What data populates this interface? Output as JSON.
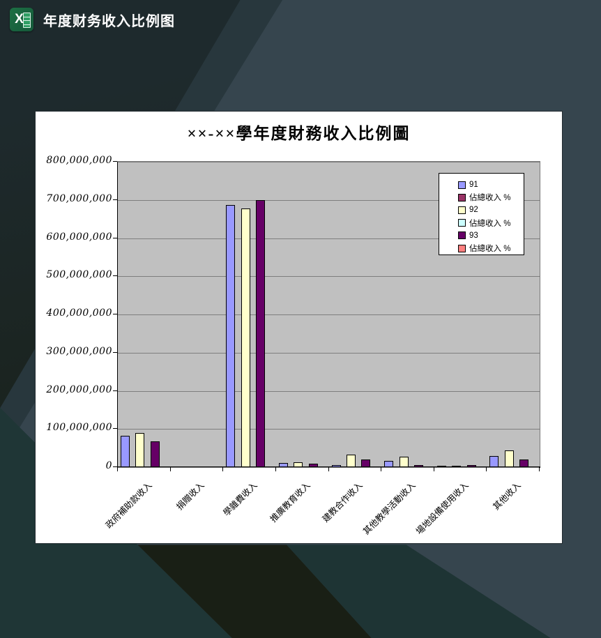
{
  "titlebar": {
    "app_title": "年度财务收入比例图",
    "icon_letter": "X"
  },
  "chart_data": {
    "type": "bar",
    "title": "××-××學年度財務收入比例圖",
    "xlabel": "",
    "ylabel": "",
    "categories": [
      "政府補助款收入",
      "捐贈收入",
      "學雜費收入",
      "推廣教育收入",
      "建教合作收入",
      "其他教學活動收入",
      "場地設備使用收入",
      "其他收入"
    ],
    "series": [
      {
        "name": "91",
        "color": "#9999FF",
        "values": [
          83000000,
          0,
          687000000,
          11000000,
          6000000,
          17000000,
          4000000,
          30000000
        ]
      },
      {
        "name": "佔總收入 %",
        "color": "#993366",
        "values": [
          0,
          0,
          0,
          0,
          0,
          0,
          0,
          0
        ]
      },
      {
        "name": "92",
        "color": "#FFFFCC",
        "values": [
          89000000,
          0,
          678000000,
          12000000,
          33000000,
          27000000,
          4000000,
          43000000
        ]
      },
      {
        "name": "佔總收入 %",
        "color": "#CCFFFF",
        "values": [
          0,
          0,
          0,
          0,
          0,
          0,
          0,
          0
        ]
      },
      {
        "name": "93",
        "color": "#660066",
        "values": [
          68000000,
          0,
          699000000,
          9000000,
          20000000,
          5000000,
          5000000,
          21000000
        ]
      },
      {
        "name": "佔總收入 %",
        "color": "#FF8080",
        "values": [
          0,
          0,
          0,
          0,
          0,
          0,
          0,
          0
        ]
      }
    ],
    "ylim": [
      0,
      800000000
    ],
    "ytick_step": 100000000,
    "ytick_labels": [
      "800,000,000",
      "700,000,000",
      "600,000,000",
      "500,000,000",
      "400,000,000",
      "300,000,000",
      "200,000,000",
      "100,000,000",
      "0"
    ],
    "grid": "horizontal",
    "legend_position": "inside-top-right",
    "plot_bg": "#C0C0C0"
  }
}
